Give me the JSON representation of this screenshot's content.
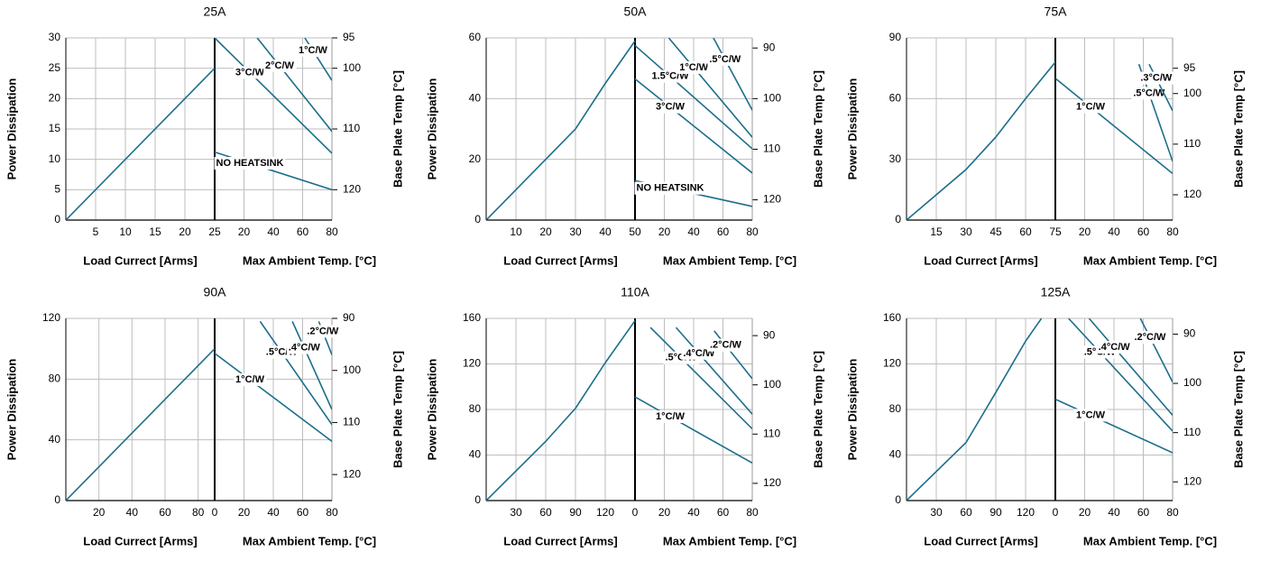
{
  "chart_data": [
    {
      "type": "line",
      "title": "25A",
      "y_label": "Power Dissipation",
      "x_label": "Load Currect [Arms]",
      "x2_label": "Max Ambient Temp. [°C]",
      "y2_label": "Base Plate Temp [°C]",
      "xlim": [
        0,
        25
      ],
      "xticks": [
        5,
        10,
        15,
        20,
        25
      ],
      "ylim": [
        0,
        30
      ],
      "yticks": [
        0,
        5,
        10,
        15,
        20,
        25,
        30
      ],
      "x2lim": [
        0,
        80
      ],
      "x2ticks": [
        20,
        40,
        60,
        80
      ],
      "y2lim": [
        125,
        95
      ],
      "y2ticks": [
        95,
        100,
        110,
        120
      ],
      "grid": true,
      "color": "#1c6e8c",
      "x": [
        0,
        25
      ],
      "values": [
        0,
        25
      ],
      "series": [
        {
          "name": "NO HEATSINK",
          "color": "#1c6e8c",
          "axis": "x2",
          "x": [
            0,
            80
          ],
          "values": [
            11.2,
            5
          ]
        },
        {
          "name": "3°C/W",
          "color": "#1c6e8c",
          "axis": "x2",
          "x": [
            0,
            80
          ],
          "values": [
            30,
            11
          ]
        },
        {
          "name": "2°C/W",
          "color": "#1c6e8c",
          "axis": "x2",
          "x": [
            29,
            80
          ],
          "values": [
            30,
            14.6
          ]
        },
        {
          "name": "1°C/W",
          "color": "#1c6e8c",
          "axis": "x2",
          "x": [
            61.5,
            80
          ],
          "values": [
            30,
            23
          ]
        }
      ]
    },
    {
      "type": "line",
      "title": "50A",
      "y_label": "Power Dissipation",
      "x_label": "Load Currect [Arms]",
      "x2_label": "Max Ambient Temp. [°C]",
      "y2_label": "Base Plate Temp [°C]",
      "xlim": [
        0,
        50
      ],
      "xticks": [
        10,
        20,
        30,
        40,
        50
      ],
      "ylim": [
        0,
        60
      ],
      "yticks": [
        0,
        20,
        40,
        60
      ],
      "x2lim": [
        0,
        80
      ],
      "x2ticks": [
        20,
        40,
        60,
        80
      ],
      "y2lim": [
        124,
        88
      ],
      "y2ticks": [
        90,
        100,
        110,
        120
      ],
      "grid": true,
      "color": "#1c6e8c",
      "x": [
        0,
        20,
        30,
        40,
        50
      ],
      "values": [
        0,
        20,
        30,
        45,
        59
      ],
      "series": [
        {
          "name": "NO HEATSINK",
          "color": "#1c6e8c",
          "axis": "x2",
          "x": [
            0,
            80
          ],
          "values": [
            13,
            4.5
          ]
        },
        {
          "name": "3°C/W",
          "color": "#1c6e8c",
          "axis": "x2",
          "x": [
            0,
            80
          ],
          "values": [
            46.5,
            15.5
          ]
        },
        {
          "name": "1.5°C/W",
          "color": "#1c6e8c",
          "axis": "x2",
          "x": [
            0,
            80
          ],
          "values": [
            57.5,
            23.5
          ]
        },
        {
          "name": "1°C/W",
          "color": "#1c6e8c",
          "axis": "x2",
          "x": [
            23,
            80
          ],
          "values": [
            60,
            27.3
          ]
        },
        {
          "name": ".5°C/W",
          "color": "#1c6e8c",
          "axis": "x2",
          "x": [
            53.5,
            80
          ],
          "values": [
            60,
            36.2
          ]
        }
      ]
    },
    {
      "type": "line",
      "title": "75A",
      "y_label": "Power Dissipation",
      "x_label": "Load Currect [Arms]",
      "x2_label": "Max Ambient Temp. [°C]",
      "y2_label": "Base Plate Temp [°C]",
      "xlim": [
        0,
        75
      ],
      "xticks": [
        15,
        30,
        45,
        60,
        75
      ],
      "ylim": [
        0,
        90
      ],
      "yticks": [
        0,
        30,
        60,
        90
      ],
      "x2lim": [
        0,
        80
      ],
      "x2ticks": [
        20,
        40,
        60,
        80
      ],
      "y2lim": [
        125,
        89
      ],
      "y2ticks": [
        95,
        100,
        110,
        120
      ],
      "grid": true,
      "color": "#1c6e8c",
      "x": [
        0,
        30,
        45,
        60,
        75
      ],
      "values": [
        0,
        25,
        41,
        60,
        78
      ],
      "series": [
        {
          "name": "1°C/W",
          "color": "#1c6e8c",
          "axis": "x2",
          "x": [
            0,
            80
          ],
          "values": [
            70,
            23
          ]
        },
        {
          "name": ".5°C/W",
          "color": "#1c6e8c",
          "axis": "x2",
          "x": [
            57,
            80
          ],
          "values": [
            77,
            29
          ]
        },
        {
          "name": ".3°C/W",
          "color": "#1c6e8c",
          "axis": "x2",
          "x": [
            64,
            80
          ],
          "values": [
            77,
            54
          ]
        }
      ]
    },
    {
      "type": "line",
      "title": "90A",
      "y_label": "Power Dissipation",
      "x_label": "Load Currect [Arms]",
      "x2_label": "Max Ambient Temp. [°C]",
      "y2_label": "Base Plate Temp [°C]",
      "xlim": [
        0,
        90
      ],
      "xticks": [
        20,
        40,
        60,
        80
      ],
      "ylim": [
        0,
        120
      ],
      "yticks": [
        0,
        40,
        80,
        120
      ],
      "x2lim": [
        0,
        80
      ],
      "x2ticks": [
        0,
        20,
        40,
        60,
        80
      ],
      "y2lim": [
        125,
        90
      ],
      "y2ticks": [
        90,
        100,
        110,
        120
      ],
      "grid": true,
      "color": "#1c6e8c",
      "x": [
        0,
        90
      ],
      "values": [
        0,
        100
      ],
      "series": [
        {
          "name": "1°C/W",
          "color": "#1c6e8c",
          "axis": "x2",
          "x": [
            0,
            80
          ],
          "values": [
            97,
            39
          ]
        },
        {
          "name": ".5°C/W",
          "color": "#1c6e8c",
          "axis": "x2",
          "x": [
            31,
            80
          ],
          "values": [
            118,
            50
          ]
        },
        {
          "name": ".4°C/W",
          "color": "#1c6e8c",
          "axis": "x2",
          "x": [
            53,
            80
          ],
          "values": [
            118,
            60
          ]
        },
        {
          "name": ".2°C/W",
          "color": "#1c6e8c",
          "axis": "x2",
          "x": [
            71,
            80
          ],
          "values": [
            118,
            96
          ]
        }
      ]
    },
    {
      "type": "line",
      "title": "110A",
      "y_label": "Power Dissipation",
      "x_label": "Load Currect [Arms]",
      "x2_label": "Max Ambient Temp. [°C]",
      "y2_label": "Base Plate Temp [°C]",
      "xlim": [
        0,
        150
      ],
      "xticks": [
        30,
        60,
        90,
        120
      ],
      "ylim": [
        0,
        160
      ],
      "yticks": [
        0,
        40,
        80,
        120,
        160
      ],
      "x2lim": [
        0,
        80
      ],
      "x2ticks": [
        0,
        20,
        40,
        60,
        80
      ],
      "y2lim": [
        123.5,
        86.5
      ],
      "y2ticks": [
        90,
        100,
        110,
        120
      ],
      "grid": true,
      "color": "#1c6e8c",
      "x": [
        0,
        60,
        90,
        120,
        150
      ],
      "values": [
        0,
        52,
        81,
        121,
        158
      ],
      "series": [
        {
          "name": "1°C/W",
          "color": "#1c6e8c",
          "axis": "x2",
          "x": [
            0,
            80
          ],
          "values": [
            91,
            33
          ]
        },
        {
          "name": ".5°C/W",
          "color": "#1c6e8c",
          "axis": "x2",
          "x": [
            10.5,
            80
          ],
          "values": [
            152,
            63
          ]
        },
        {
          "name": ".4°C/W",
          "color": "#1c6e8c",
          "axis": "x2",
          "x": [
            28,
            80
          ],
          "values": [
            152,
            76
          ]
        },
        {
          "name": ".2°C/W",
          "color": "#1c6e8c",
          "axis": "x2",
          "x": [
            54,
            80
          ],
          "values": [
            149,
            107
          ]
        }
      ]
    },
    {
      "type": "line",
      "title": "125A",
      "y_label": "Power Dissipation",
      "x_label": "Load Currect [Arms]",
      "x2_label": "Max Ambient Temp. [°C]",
      "y2_label": "Base Plate Temp [°C]",
      "xlim": [
        0,
        150
      ],
      "xticks": [
        30,
        60,
        90,
        120
      ],
      "ylim": [
        0,
        160
      ],
      "yticks": [
        0,
        40,
        80,
        120,
        160
      ],
      "x2lim": [
        0,
        80
      ],
      "x2ticks": [
        0,
        20,
        40,
        60,
        80
      ],
      "y2lim": [
        123.8,
        86.8
      ],
      "y2ticks": [
        90,
        100,
        110,
        120
      ],
      "grid": true,
      "color": "#1c6e8c",
      "x": [
        0,
        60,
        90,
        120,
        136
      ],
      "values": [
        0,
        51,
        95,
        140,
        160
      ],
      "series": [
        {
          "name": "1°C/W",
          "color": "#1c6e8c",
          "axis": "x2",
          "x": [
            0,
            80
          ],
          "values": [
            89,
            42
          ]
        },
        {
          "name": ".5°C/W",
          "color": "#1c6e8c",
          "axis": "x2",
          "x": [
            9,
            80
          ],
          "values": [
            160,
            61
          ]
        },
        {
          "name": ".4°C/W",
          "color": "#1c6e8c",
          "axis": "x2",
          "x": [
            23,
            80
          ],
          "values": [
            160,
            75
          ]
        },
        {
          "name": ".2°C/W",
          "color": "#1c6e8c",
          "axis": "x2",
          "x": [
            58,
            80
          ],
          "values": [
            160,
            104
          ]
        }
      ]
    }
  ]
}
